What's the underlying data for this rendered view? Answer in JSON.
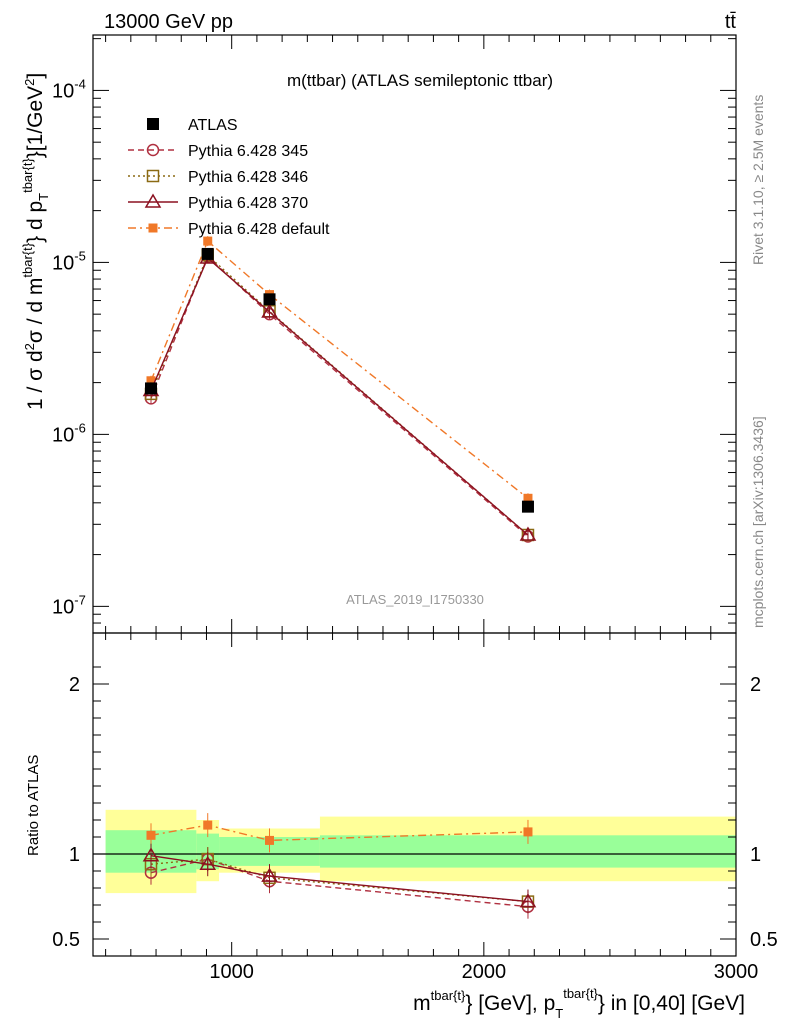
{
  "header": {
    "left": "13000 GeV pp",
    "right": "tt̄",
    "right_side": "Rivet 3.1.10, ≥ 2.5M events",
    "right_side2": "mcplots.cern.ch [arXiv:1306.3436]"
  },
  "chart_data": {
    "type": "line",
    "title": "m(ttbar) (ATLAS semileptonic ttbar)",
    "watermark": "ATLAS_2019_I1750330",
    "ylabel_main": "1 / σ d²σ / d m^{tbar{t}} d p_T^{tbar{t}} [1/GeV²]",
    "ylabel_ratio": "Ratio to ATLAS",
    "xlabel": "m^{tbar{t}} [GeV], p_T^{tbar{t}} in [0,40] [GeV]",
    "xaxis": {
      "range": [
        450,
        3000
      ],
      "ticks": [
        1000,
        2000,
        3000
      ],
      "tick_labels": [
        "1000",
        "2000",
        "3000"
      ]
    },
    "yaxis_main": {
      "scale": "log",
      "range": [
        7e-08,
        0.00021
      ],
      "tick_labels": [
        "10^{-7}",
        "10^{-6}",
        "10^{-5}",
        "10^{-4}"
      ]
    },
    "yaxis_ratio": {
      "range": [
        0.4,
        2.3
      ],
      "ticks": [
        0.5,
        1,
        2
      ],
      "tick_labels": [
        "0.5",
        "1",
        "2"
      ]
    },
    "x": [
      680,
      905,
      1150,
      2175
    ],
    "bins": [
      [
        500,
        860
      ],
      [
        860,
        950
      ],
      [
        950,
        1350
      ],
      [
        1350,
        3000
      ]
    ],
    "band_inner": [
      [
        0.89,
        1.14
      ],
      [
        0.91,
        1.12
      ],
      [
        0.93,
        1.1
      ],
      [
        0.92,
        1.11
      ]
    ],
    "band_outer": [
      [
        0.77,
        1.26
      ],
      [
        0.84,
        1.2
      ],
      [
        0.89,
        1.15
      ],
      [
        0.84,
        1.22
      ]
    ],
    "series": [
      {
        "name": "ATLAS",
        "color": "#000000",
        "marker": "square",
        "line": "none",
        "values": [
          1.85e-06,
          1.12e-05,
          6.1e-06,
          3.8e-07
        ],
        "ratio": [
          1,
          1,
          1,
          1
        ]
      },
      {
        "name": "Pythia 6.428 345",
        "color": "#b03040",
        "marker": "circle",
        "line": "dashed",
        "values": [
          1.62e-06,
          1.08e-05,
          5e-06,
          2.55e-07
        ],
        "ratio": [
          0.89,
          0.97,
          0.84,
          0.69
        ]
      },
      {
        "name": "Pythia 6.428 346",
        "color": "#8b6a14",
        "marker": "square-open",
        "line": "dotted",
        "values": [
          1.72e-06,
          1.1e-05,
          5.2e-06,
          2.6e-07
        ],
        "ratio": [
          0.94,
          0.97,
          0.86,
          0.72
        ]
      },
      {
        "name": "Pythia 6.428 370",
        "color": "#8b1020",
        "marker": "triangle",
        "line": "solid",
        "values": [
          1.8e-06,
          1.06e-05,
          5.15e-06,
          2.6e-07
        ],
        "ratio": [
          0.99,
          0.94,
          0.87,
          0.72
        ]
      },
      {
        "name": "Pythia 6.428 default",
        "color": "#f07828",
        "marker": "square-filled",
        "line": "dashdot",
        "values": [
          2.05e-06,
          1.33e-05,
          6.5e-06,
          4.25e-07
        ],
        "ratio": [
          1.11,
          1.17,
          1.08,
          1.13
        ]
      }
    ]
  }
}
